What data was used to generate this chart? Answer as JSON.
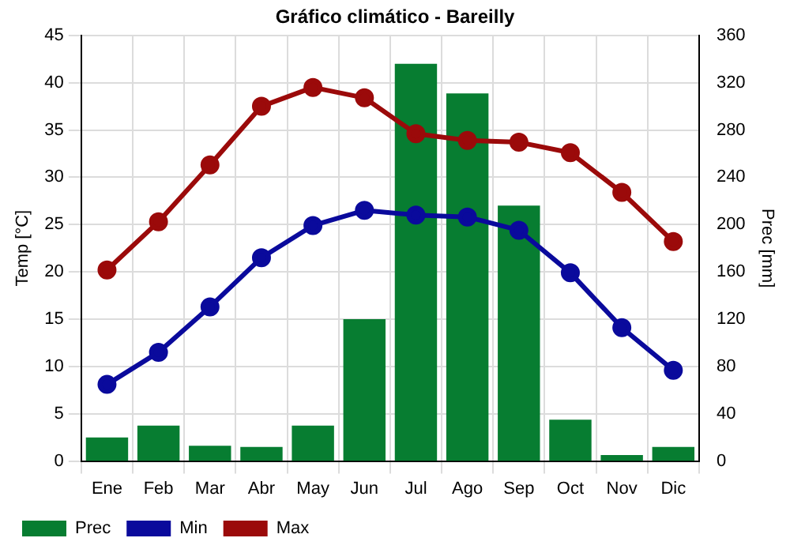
{
  "chart_data": {
    "type": "bar",
    "title": "Gráfico climático - Bareilly",
    "ylabel": "Temp [°C]",
    "y2label": "Prec [mm]",
    "categories": [
      "Ene",
      "Feb",
      "Mar",
      "Abr",
      "May",
      "Jun",
      "Jul",
      "Ago",
      "Sep",
      "Oct",
      "Nov",
      "Dic"
    ],
    "series": [
      {
        "name": "Prec",
        "axis": "y2",
        "color": "#077d31",
        "values": [
          20,
          30,
          13,
          12,
          30,
          120,
          336,
          311,
          216,
          35,
          5,
          12
        ]
      },
      {
        "name": "Min",
        "type": "line",
        "color": "#0a0a9c",
        "values": [
          8.1,
          11.5,
          16.3,
          21.5,
          24.9,
          26.5,
          26.0,
          25.8,
          24.4,
          19.9,
          14.1,
          9.6
        ]
      },
      {
        "name": "Max",
        "type": "line",
        "color": "#9b0a0a",
        "values": [
          20.2,
          25.3,
          31.3,
          37.5,
          39.5,
          38.4,
          34.6,
          33.9,
          33.7,
          32.6,
          28.4,
          23.2
        ]
      }
    ],
    "ylim": [
      0,
      45
    ],
    "yticks": [
      0,
      5,
      10,
      15,
      20,
      25,
      30,
      35,
      40,
      45
    ],
    "y2lim": [
      0,
      360
    ],
    "y2ticks": [
      0,
      40,
      80,
      120,
      160,
      200,
      240,
      280,
      320,
      360
    ],
    "grid": true,
    "legend": "bottom left",
    "marker": "circle",
    "line_style": "solid"
  }
}
